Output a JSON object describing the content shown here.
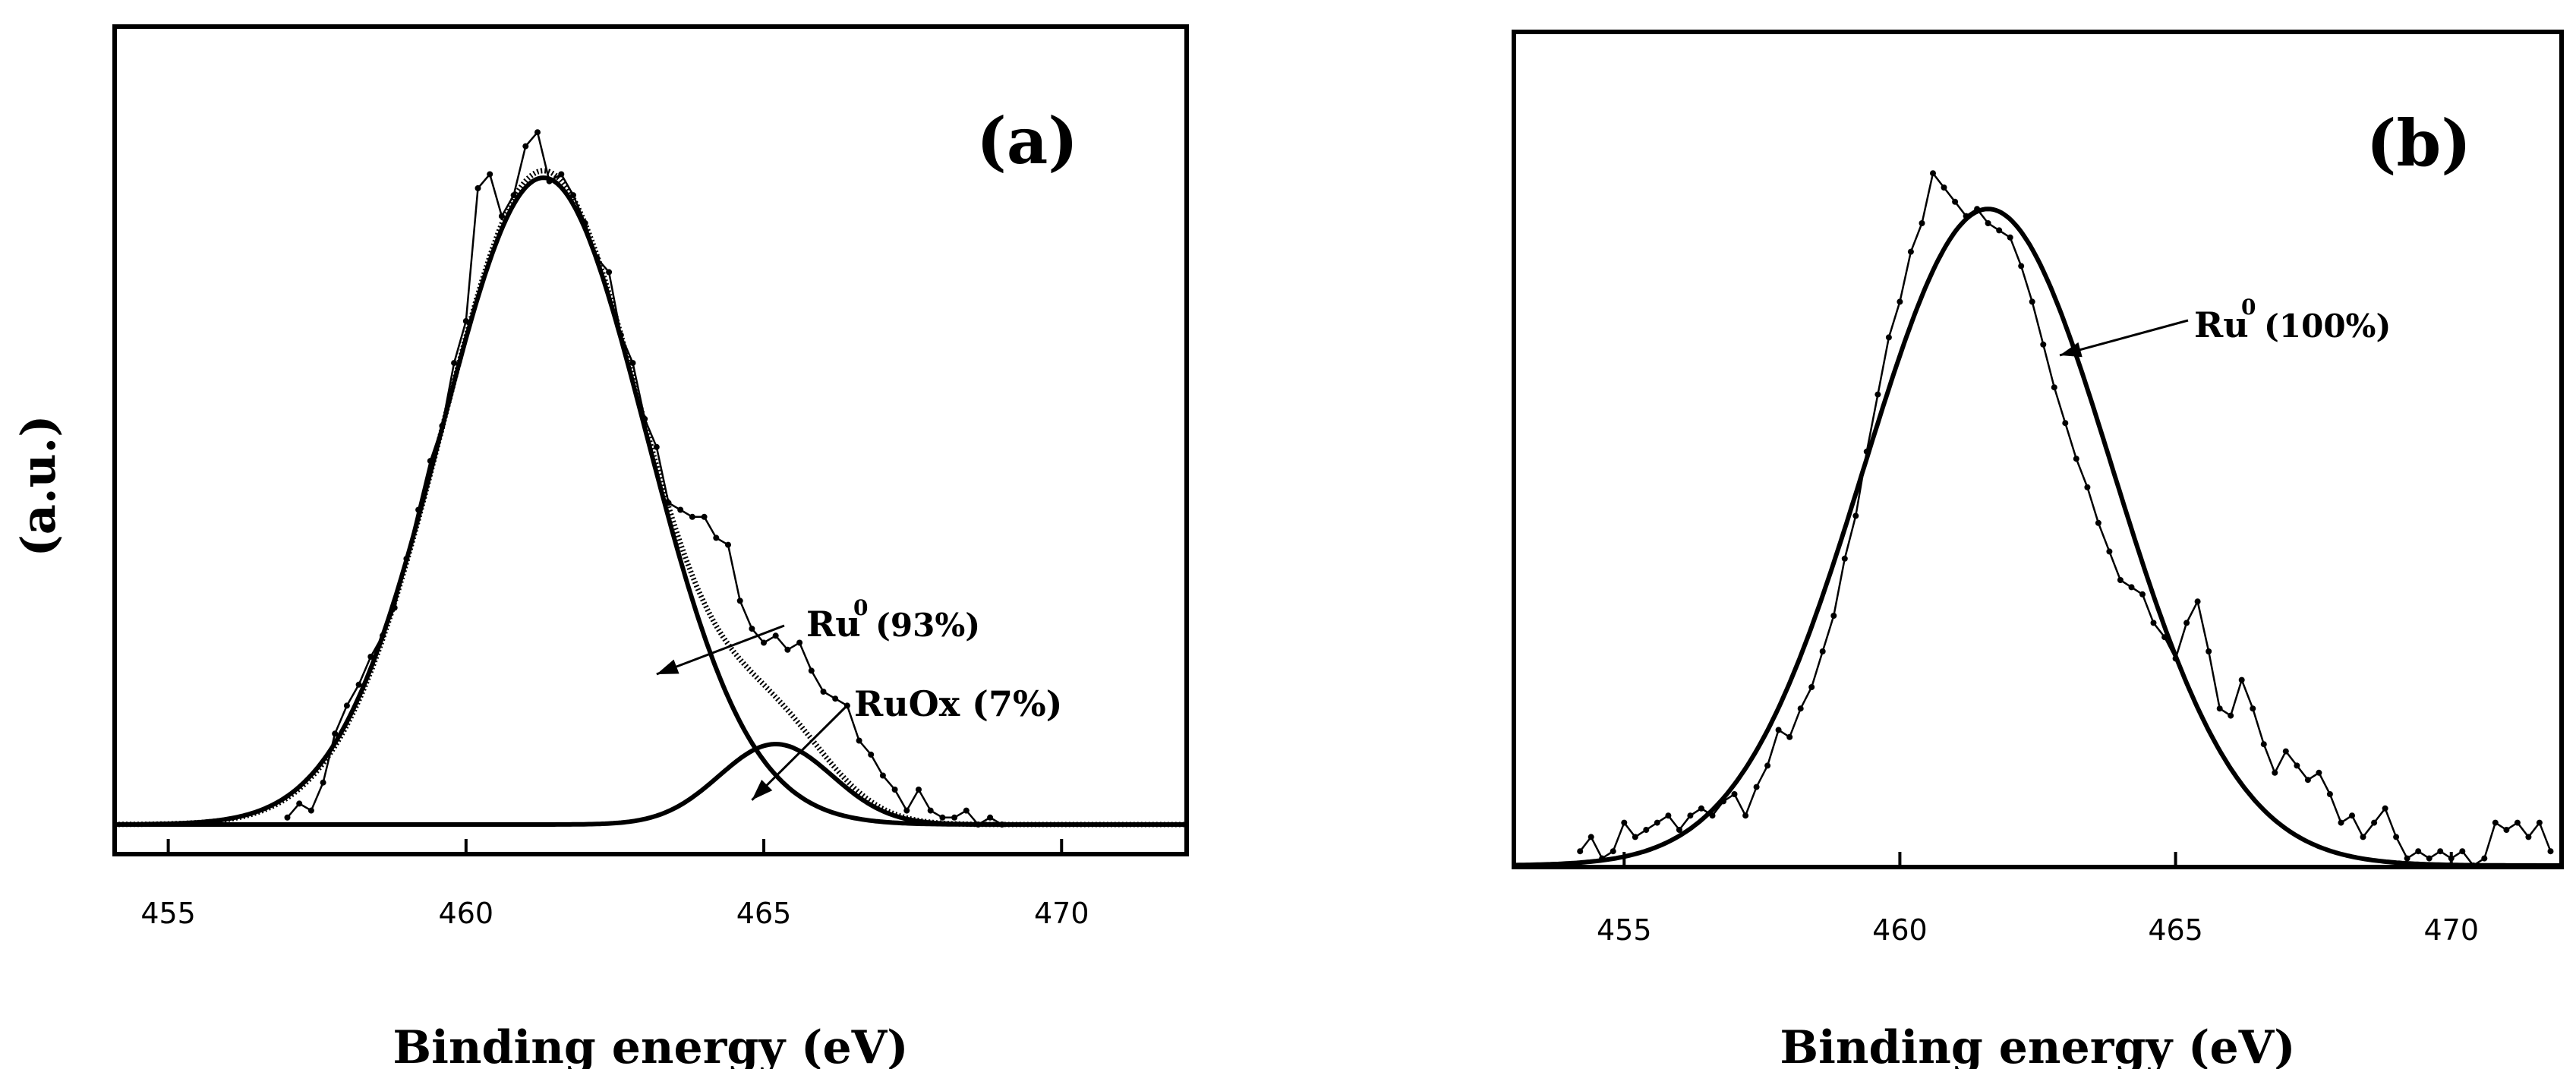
{
  "chart_data": [
    {
      "type": "line",
      "panel_label": "(a)",
      "xlabel": "Binding energy (eV)",
      "ylabel": "(a.u.)",
      "xlim": [
        454.1,
        472.1
      ],
      "ylim": [
        0,
        1.0
      ],
      "x_ticks": [
        455,
        460,
        465,
        470
      ],
      "x_tick_labels": [
        "455",
        "460",
        "465",
        "470"
      ],
      "y_ticks": "none",
      "series": [
        {
          "name": "Experimental",
          "style": "noisy-markers",
          "points": [
            [
              457.0,
              0.01
            ],
            [
              457.2,
              0.03
            ],
            [
              457.4,
              0.02
            ],
            [
              457.6,
              0.06
            ],
            [
              457.8,
              0.13
            ],
            [
              458.0,
              0.17
            ],
            [
              458.2,
              0.2
            ],
            [
              458.4,
              0.24
            ],
            [
              458.6,
              0.27
            ],
            [
              458.8,
              0.31
            ],
            [
              459.0,
              0.38
            ],
            [
              459.2,
              0.45
            ],
            [
              459.4,
              0.52
            ],
            [
              459.6,
              0.57
            ],
            [
              459.8,
              0.66
            ],
            [
              460.0,
              0.72
            ],
            [
              460.2,
              0.91
            ],
            [
              460.4,
              0.93
            ],
            [
              460.6,
              0.87
            ],
            [
              460.8,
              0.9
            ],
            [
              461.0,
              0.97
            ],
            [
              461.2,
              0.99
            ],
            [
              461.4,
              0.92
            ],
            [
              461.6,
              0.93
            ],
            [
              461.8,
              0.9
            ],
            [
              462.0,
              0.86
            ],
            [
              462.2,
              0.81
            ],
            [
              462.4,
              0.79
            ],
            [
              462.6,
              0.7
            ],
            [
              462.8,
              0.66
            ],
            [
              463.0,
              0.58
            ],
            [
              463.2,
              0.54
            ],
            [
              463.4,
              0.46
            ],
            [
              463.6,
              0.45
            ],
            [
              463.8,
              0.44
            ],
            [
              464.0,
              0.44
            ],
            [
              464.2,
              0.41
            ],
            [
              464.4,
              0.4
            ],
            [
              464.6,
              0.32
            ],
            [
              464.8,
              0.28
            ],
            [
              465.0,
              0.26
            ],
            [
              465.2,
              0.27
            ],
            [
              465.4,
              0.25
            ],
            [
              465.6,
              0.26
            ],
            [
              465.8,
              0.22
            ],
            [
              466.0,
              0.19
            ],
            [
              466.2,
              0.18
            ],
            [
              466.4,
              0.17
            ],
            [
              466.6,
              0.12
            ],
            [
              466.8,
              0.1
            ],
            [
              467.0,
              0.07
            ],
            [
              467.2,
              0.05
            ],
            [
              467.4,
              0.02
            ],
            [
              467.6,
              0.05
            ],
            [
              467.8,
              0.02
            ],
            [
              468.0,
              0.01
            ],
            [
              468.2,
              0.01
            ],
            [
              468.4,
              0.02
            ],
            [
              468.6,
              0.0
            ],
            [
              468.8,
              0.01
            ],
            [
              469.0,
              0.0
            ]
          ]
        },
        {
          "name": "Envelope",
          "style": "line-dotted",
          "gaussians": [
            {
              "center": 461.3,
              "height": 0.935,
              "sigma": 1.7
            },
            {
              "center": 465.2,
              "height": 0.115,
              "sigma": 0.95
            }
          ]
        },
        {
          "name": "Ru0 fit",
          "style": "line",
          "gaussians": [
            {
              "center": 461.3,
              "height": 0.925,
              "sigma": 1.72
            }
          ]
        },
        {
          "name": "RuOx fit",
          "style": "line",
          "gaussians": [
            {
              "center": 465.2,
              "height": 0.115,
              "sigma": 0.95
            }
          ]
        }
      ],
      "annotations": [
        {
          "text_main": "Ru",
          "text_sup": "0",
          "text_rest": "(93%)",
          "arrow_tip": [
            463.2,
            0.215
          ]
        },
        {
          "text_main": "RuOx (7%)",
          "text_sup": "",
          "text_rest": "",
          "arrow_tip": [
            464.8,
            0.035
          ]
        }
      ]
    },
    {
      "type": "line",
      "panel_label": "(b)",
      "xlabel": "Binding energy (eV)",
      "ylabel": "",
      "xlim": [
        453.0,
        472.0
      ],
      "ylim": [
        0,
        1.0
      ],
      "x_ticks": [
        455,
        460,
        465,
        470
      ],
      "x_tick_labels": [
        "455",
        "460",
        "465",
        "470"
      ],
      "y_ticks": "none",
      "series": [
        {
          "name": "Experimental",
          "style": "noisy-markers",
          "points": [
            [
              454.2,
              0.02
            ],
            [
              454.4,
              0.04
            ],
            [
              454.6,
              0.01
            ],
            [
              454.8,
              0.02
            ],
            [
              455.0,
              0.06
            ],
            [
              455.2,
              0.04
            ],
            [
              455.4,
              0.05
            ],
            [
              455.6,
              0.06
            ],
            [
              455.8,
              0.07
            ],
            [
              456.0,
              0.05
            ],
            [
              456.2,
              0.07
            ],
            [
              456.4,
              0.08
            ],
            [
              456.6,
              0.07
            ],
            [
              456.8,
              0.09
            ],
            [
              457.0,
              0.1
            ],
            [
              457.2,
              0.07
            ],
            [
              457.4,
              0.11
            ],
            [
              457.6,
              0.14
            ],
            [
              457.8,
              0.19
            ],
            [
              458.0,
              0.18
            ],
            [
              458.2,
              0.22
            ],
            [
              458.4,
              0.25
            ],
            [
              458.6,
              0.3
            ],
            [
              458.8,
              0.35
            ],
            [
              459.0,
              0.43
            ],
            [
              459.2,
              0.49
            ],
            [
              459.4,
              0.58
            ],
            [
              459.6,
              0.66
            ],
            [
              459.8,
              0.74
            ],
            [
              460.0,
              0.79
            ],
            [
              460.2,
              0.86
            ],
            [
              460.4,
              0.9
            ],
            [
              460.6,
              0.97
            ],
            [
              460.8,
              0.95
            ],
            [
              461.0,
              0.93
            ],
            [
              461.2,
              0.91
            ],
            [
              461.4,
              0.92
            ],
            [
              461.6,
              0.9
            ],
            [
              461.8,
              0.89
            ],
            [
              462.0,
              0.88
            ],
            [
              462.2,
              0.84
            ],
            [
              462.4,
              0.79
            ],
            [
              462.6,
              0.73
            ],
            [
              462.8,
              0.67
            ],
            [
              463.0,
              0.62
            ],
            [
              463.2,
              0.57
            ],
            [
              463.4,
              0.53
            ],
            [
              463.6,
              0.48
            ],
            [
              463.8,
              0.44
            ],
            [
              464.0,
              0.4
            ],
            [
              464.2,
              0.39
            ],
            [
              464.4,
              0.38
            ],
            [
              464.6,
              0.34
            ],
            [
              464.8,
              0.32
            ],
            [
              465.0,
              0.29
            ],
            [
              465.2,
              0.34
            ],
            [
              465.4,
              0.37
            ],
            [
              465.6,
              0.3
            ],
            [
              465.8,
              0.22
            ],
            [
              466.0,
              0.21
            ],
            [
              466.2,
              0.26
            ],
            [
              466.4,
              0.22
            ],
            [
              466.6,
              0.17
            ],
            [
              466.8,
              0.13
            ],
            [
              467.0,
              0.16
            ],
            [
              467.2,
              0.14
            ],
            [
              467.4,
              0.12
            ],
            [
              467.6,
              0.13
            ],
            [
              467.8,
              0.1
            ],
            [
              468.0,
              0.06
            ],
            [
              468.2,
              0.07
            ],
            [
              468.4,
              0.04
            ],
            [
              468.6,
              0.06
            ],
            [
              468.8,
              0.08
            ],
            [
              469.0,
              0.04
            ],
            [
              469.2,
              0.01
            ],
            [
              469.4,
              0.02
            ],
            [
              469.6,
              0.01
            ],
            [
              469.8,
              0.02
            ],
            [
              470.0,
              0.01
            ],
            [
              470.2,
              0.02
            ],
            [
              470.4,
              0.0
            ],
            [
              470.6,
              0.01
            ],
            [
              470.8,
              0.06
            ],
            [
              471.0,
              0.05
            ],
            [
              471.2,
              0.06
            ],
            [
              471.4,
              0.04
            ],
            [
              471.6,
              0.06
            ],
            [
              471.8,
              0.02
            ]
          ]
        },
        {
          "name": "Ru0 fit",
          "style": "line",
          "gaussians": [
            {
              "center": 461.6,
              "height": 0.92,
              "sigma": 2.25
            }
          ]
        }
      ],
      "annotations": [
        {
          "text_main": "Ru",
          "text_sup": "0",
          "text_rest": "(100%)",
          "arrow_tip": [
            462.9,
            0.715
          ]
        }
      ]
    }
  ]
}
